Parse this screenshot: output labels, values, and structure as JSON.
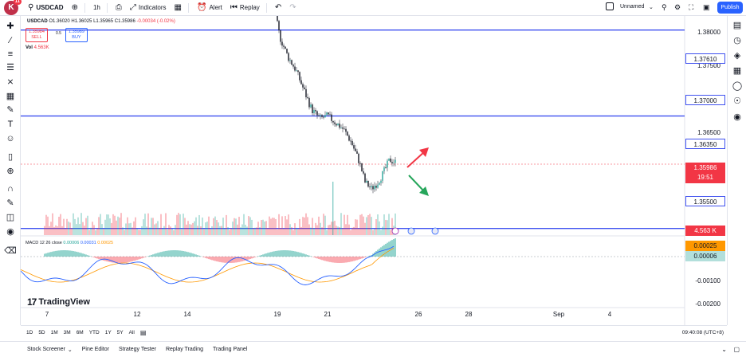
{
  "toolbar": {
    "logo_letter": "K",
    "notifications": "11",
    "symbol": "USDCAD",
    "interval": "1h",
    "indicators": "Indicators",
    "alert": "Alert",
    "replay": "Replay",
    "layout_name": "Unnamed",
    "publish": "Publish"
  },
  "legend": {
    "open": "O1.36020",
    "high": "H1.36025",
    "low": "L1.35965",
    "close": "C1.35986",
    "change": "-0.00034 (-0.02%)",
    "sell_price": "1.35984",
    "sell_label": "SELL",
    "spread": "0.5",
    "buy_price": "1.35989",
    "buy_label": "BUY",
    "vol_label": "Vol",
    "vol_value": "4.563K"
  },
  "macd": {
    "label": "MACD 12 26 close",
    "hist": "0.00006",
    "macd": "0.00031",
    "signal": "0.00025"
  },
  "price_scale": {
    "ticks": [
      "1.38000",
      "1.37500",
      "1.36500",
      "-0.00100",
      "-0.00200"
    ],
    "levels": [
      "1.37610",
      "1.37000",
      "1.36350",
      "1.35500"
    ],
    "current_price": "1.35986",
    "countdown": "19:51",
    "volume_tag": "4.563 K",
    "signal_tag": "0.00025",
    "hist_tag": "0.00006"
  },
  "time_axis": [
    "7",
    "12",
    "14",
    "19",
    "21",
    "26",
    "28",
    "Sep",
    "4"
  ],
  "watermark": "TradingView",
  "timeframes": [
    "1D",
    "5D",
    "1M",
    "3M",
    "6M",
    "YTD",
    "1Y",
    "5Y",
    "All"
  ],
  "clock": "09:40:08 (UTC+8)",
  "bottom_panel": [
    "Stock Screener",
    "Pine Editor",
    "Strategy Tester",
    "Replay Trading",
    "Trading Panel"
  ],
  "colors": {
    "up": "#26a69a",
    "down": "#f23645",
    "level_line": "#3f51f0",
    "accent": "#2962ff"
  }
}
